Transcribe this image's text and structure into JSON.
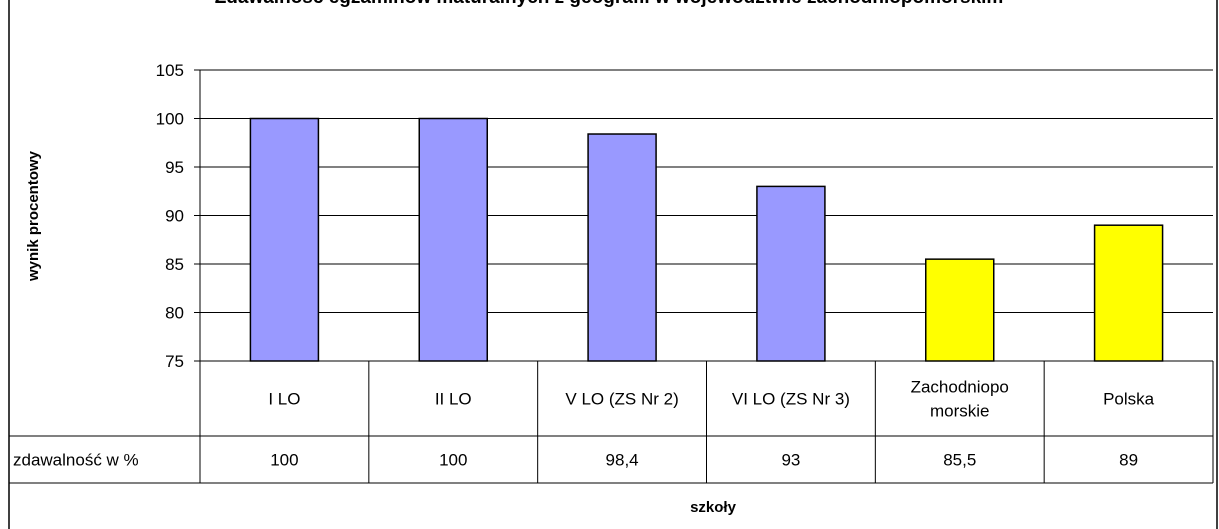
{
  "title": "Zdawalność egzaminów maturalnych z geografii w województwie zachodniopomorskim",
  "chart_data": {
    "type": "bar",
    "title": "Zdawalność egzaminów maturalnych z geografii w województwie zachodniopomorskim",
    "xlabel": "szkoły",
    "ylabel": "wynik procentowy",
    "ylim": [
      75,
      105
    ],
    "yticks": [
      75,
      80,
      85,
      90,
      95,
      100,
      105
    ],
    "grid": true,
    "categories": [
      "I LO",
      "II LO",
      "V LO (ZS Nr 2)",
      "VI LO (ZS Nr 3)",
      "Zachodniopo morskie",
      "Polska"
    ],
    "category_lines": [
      [
        "I LO"
      ],
      [
        "II LO"
      ],
      [
        "V LO (ZS Nr 2)"
      ],
      [
        "VI LO (ZS Nr 3)"
      ],
      [
        "Zachodniopo",
        "morskie"
      ],
      [
        "Polska"
      ]
    ],
    "series": [
      {
        "name": "zdawalność w %",
        "values": [
          100,
          100,
          98.4,
          93,
          85.5,
          89
        ]
      }
    ],
    "data_table": {
      "row_label": "zdawalność w %",
      "cells": [
        "100",
        "100",
        "98,4",
        "93",
        "85,5",
        "89"
      ]
    },
    "bar_colors": [
      "#9999ff",
      "#9999ff",
      "#9999ff",
      "#9999ff",
      "#ffff00",
      "#ffff00"
    ]
  }
}
